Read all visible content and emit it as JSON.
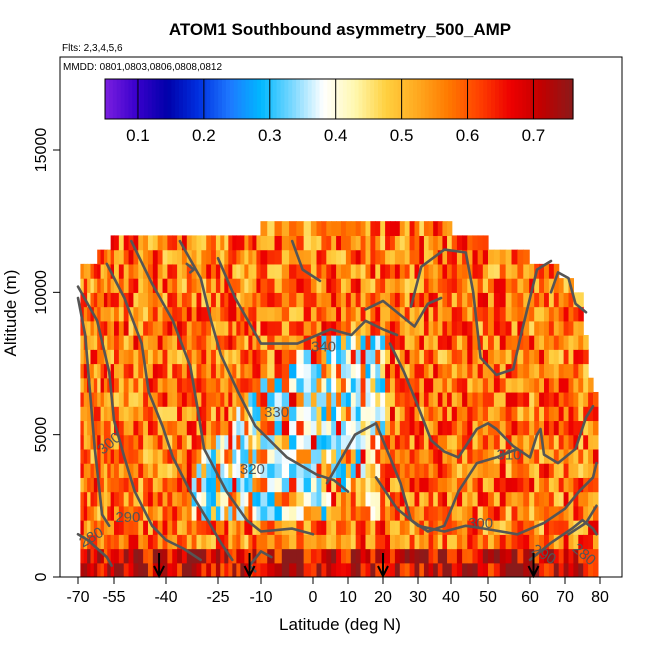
{
  "chart_data": {
    "type": "heatmap",
    "title": "ATOM1 Southbound asymmetry_500_AMP",
    "subtitle_flights": "Flts: 2,3,4,5,6",
    "subtitle_dates": "MMDD: 0801,0803,0806,0808,0812",
    "xlabel": "Latitude (deg N)",
    "ylabel": "Altitude (m)",
    "xlim": [
      -70,
      80
    ],
    "ylim": [
      0,
      17500
    ],
    "x_ticks": [
      -70,
      -55,
      -40,
      -25,
      -10,
      0,
      10,
      20,
      30,
      40,
      50,
      60,
      70,
      80
    ],
    "x_tick_labels": [
      "-70",
      "-55",
      "-40",
      "-25",
      "-10",
      "0",
      "10",
      "20",
      "30",
      "40",
      "50",
      "60",
      "70",
      "80"
    ],
    "y_ticks": [
      0,
      5000,
      10000,
      15000
    ],
    "y_tick_labels": [
      "0",
      "5000",
      "10000",
      "15000"
    ],
    "colorbar": {
      "range": [
        0.05,
        0.76
      ],
      "ticks": [
        0.1,
        0.2,
        0.3,
        0.4,
        0.5,
        0.6,
        0.7
      ],
      "tick_labels": [
        "0.1",
        "0.2",
        "0.3",
        "0.4",
        "0.5",
        "0.6",
        "0.7"
      ],
      "colors": [
        "#7b1fe0",
        "#3a00cc",
        "#0000aa",
        "#0030e0",
        "#1e78ff",
        "#00b8ff",
        "#7ad8ff",
        "#ffffff",
        "#fff8b0",
        "#ffd040",
        "#ffaa20",
        "#ff7a00",
        "#ff4000",
        "#ee0000",
        "#c00000",
        "#8b1a1a"
      ]
    },
    "data_extent": {
      "columns_lat_min": [
        -69,
        50
      ],
      "grid_lat_step": 1.4,
      "grid_alt_step": 500,
      "top_altitude_profile": [
        {
          "lat": -70,
          "alt": 10500
        },
        {
          "lat": -62,
          "alt": 11000
        },
        {
          "lat": -56,
          "alt": 11500
        },
        {
          "lat": -46,
          "alt": 12000
        },
        {
          "lat": -30,
          "alt": 12000
        },
        {
          "lat": -10,
          "alt": 12000
        },
        {
          "lat": 0,
          "alt": 12500
        },
        {
          "lat": 20,
          "alt": 12500
        },
        {
          "lat": 31,
          "alt": 12500
        },
        {
          "lat": 40,
          "alt": 12000
        },
        {
          "lat": 50,
          "alt": 11500
        },
        {
          "lat": 60,
          "alt": 11000
        },
        {
          "lat": 68,
          "alt": 10500
        },
        {
          "lat": 73,
          "alt": 10000
        },
        {
          "lat": 75,
          "alt": 9500
        },
        {
          "lat": 77,
          "alt": 7000
        },
        {
          "lat": 79,
          "alt": 6000
        }
      ],
      "low_value_region": {
        "lat_range": [
          -33,
          20
        ],
        "alt_range": [
          1500,
          8500
        ],
        "value_approx": 0.35
      },
      "background_value_approx": 0.57
    },
    "contours": [
      {
        "level": 280,
        "label": "280"
      },
      {
        "level": 290,
        "label": "290"
      },
      {
        "level": 300,
        "label": "300"
      },
      {
        "level": 310,
        "label": "310"
      },
      {
        "level": 320,
        "label": "320"
      },
      {
        "level": 330,
        "label": "330"
      },
      {
        "level": 340,
        "label": "340"
      }
    ],
    "contour_labels": [
      {
        "text": "280",
        "lat": -64.5,
        "alt": 1400,
        "angle": 30
      },
      {
        "text": "290",
        "lat": -51,
        "alt": 2100,
        "angle": 0
      },
      {
        "text": "300",
        "lat": -57,
        "alt": 4700,
        "angle": 40
      },
      {
        "text": "320",
        "lat": -13,
        "alt": 3800,
        "angle": 0
      },
      {
        "text": "330",
        "lat": -7,
        "alt": 5800,
        "angle": 0
      },
      {
        "text": "340",
        "lat": 3,
        "alt": 8100,
        "angle": 0
      },
      {
        "text": "310",
        "lat": 55,
        "alt": 4300,
        "angle": 0
      },
      {
        "text": "300",
        "lat": 48,
        "alt": 1900,
        "angle": 0
      },
      {
        "text": "290",
        "lat": 64,
        "alt": 800,
        "angle": -30
      },
      {
        "text": "280",
        "lat": 75.5,
        "alt": 800,
        "angle": -40
      }
    ],
    "markers": [
      {
        "type": "arrow_down",
        "lat": -42
      },
      {
        "type": "arrow_down",
        "lat": -14
      },
      {
        "type": "arrow_down",
        "lat": 20
      },
      {
        "type": "arrow_down",
        "lat": 61
      }
    ]
  }
}
